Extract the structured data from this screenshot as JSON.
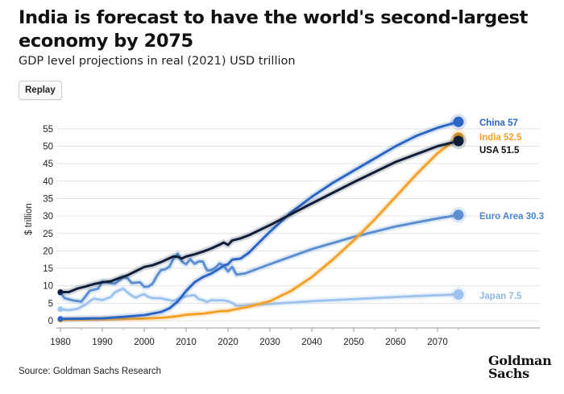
{
  "title": "India is forecast to have the world's second-largest economy by 2075",
  "subtitle": "GDP level projections in real (2021) USD trillion",
  "replay_label": "Replay",
  "source": "Source: Goldman Sachs Research",
  "logo": {
    "line1": "Goldman",
    "line2": "Sachs"
  },
  "chart_data": {
    "type": "line",
    "xlabel": "",
    "ylabel": "$ trillion",
    "xlim": [
      1980,
      2080
    ],
    "ylim": [
      -1,
      58
    ],
    "x_ticks": [
      1980,
      1990,
      2000,
      2010,
      2020,
      2030,
      2040,
      2050,
      2060,
      2070
    ],
    "y_ticks": [
      0,
      5,
      10,
      15,
      20,
      25,
      30,
      35,
      40,
      45,
      50,
      55
    ],
    "grid": "horizontal",
    "legend": "end-of-line labels, right",
    "series": [
      {
        "name": "USA",
        "end_label": "USA 51.5",
        "color": "#0f1f3a",
        "points": [
          [
            1980,
            8.2
          ],
          [
            1982,
            8.2
          ],
          [
            1984,
            9.2
          ],
          [
            1986,
            9.8
          ],
          [
            1988,
            10.5
          ],
          [
            1990,
            11.0
          ],
          [
            1992,
            11.3
          ],
          [
            1994,
            12.2
          ],
          [
            1996,
            13.0
          ],
          [
            1998,
            14.2
          ],
          [
            2000,
            15.4
          ],
          [
            2002,
            15.9
          ],
          [
            2004,
            16.8
          ],
          [
            2006,
            17.9
          ],
          [
            2007,
            18.4
          ],
          [
            2008,
            18.3
          ],
          [
            2009,
            17.8
          ],
          [
            2010,
            18.4
          ],
          [
            2012,
            19.0
          ],
          [
            2014,
            19.8
          ],
          [
            2016,
            20.7
          ],
          [
            2018,
            21.8
          ],
          [
            2019,
            22.4
          ],
          [
            2020,
            21.7
          ],
          [
            2021,
            23.0
          ],
          [
            2023,
            23.6
          ],
          [
            2025,
            24.5
          ],
          [
            2030,
            27.4
          ],
          [
            2040,
            33.6
          ],
          [
            2050,
            39.7
          ],
          [
            2060,
            45.5
          ],
          [
            2070,
            50.0
          ],
          [
            2075,
            51.5
          ]
        ]
      },
      {
        "name": "China",
        "end_label": "China 57",
        "color": "#2b66c4",
        "points": [
          [
            1980,
            0.5
          ],
          [
            1985,
            0.6
          ],
          [
            1990,
            0.7
          ],
          [
            1995,
            1.1
          ],
          [
            2000,
            1.6
          ],
          [
            2004,
            2.5
          ],
          [
            2006,
            3.5
          ],
          [
            2008,
            5.5
          ],
          [
            2010,
            8.5
          ],
          [
            2012,
            11.0
          ],
          [
            2014,
            12.5
          ],
          [
            2016,
            13.5
          ],
          [
            2018,
            15.0
          ],
          [
            2019,
            15.8
          ],
          [
            2020,
            16.2
          ],
          [
            2021,
            17.5
          ],
          [
            2023,
            17.8
          ],
          [
            2025,
            19.5
          ],
          [
            2030,
            25.5
          ],
          [
            2035,
            31.0
          ],
          [
            2040,
            35.5
          ],
          [
            2045,
            39.5
          ],
          [
            2050,
            43.0
          ],
          [
            2055,
            46.5
          ],
          [
            2060,
            50.0
          ],
          [
            2065,
            53.0
          ],
          [
            2070,
            55.3
          ],
          [
            2075,
            57.0
          ]
        ]
      },
      {
        "name": "India",
        "end_label": "India 52.5",
        "color": "#f2a12a",
        "points": [
          [
            1980,
            0.3
          ],
          [
            1990,
            0.4
          ],
          [
            2000,
            0.6
          ],
          [
            2005,
            0.9
          ],
          [
            2008,
            1.3
          ],
          [
            2010,
            1.7
          ],
          [
            2014,
            2.0
          ],
          [
            2018,
            2.7
          ],
          [
            2020,
            2.8
          ],
          [
            2021,
            3.1
          ],
          [
            2025,
            4.0
          ],
          [
            2030,
            5.6
          ],
          [
            2035,
            8.5
          ],
          [
            2040,
            12.5
          ],
          [
            2045,
            17.5
          ],
          [
            2050,
            23.0
          ],
          [
            2055,
            29.0
          ],
          [
            2060,
            35.5
          ],
          [
            2065,
            42.0
          ],
          [
            2070,
            48.0
          ],
          [
            2075,
            52.5
          ]
        ]
      },
      {
        "name": "Euro Area",
        "end_label": "Euro Area 30.3",
        "color": "#5b8fd0",
        "points": [
          [
            1980,
            8.0
          ],
          [
            1981,
            6.5
          ],
          [
            1983,
            5.8
          ],
          [
            1985,
            5.5
          ],
          [
            1986,
            7.0
          ],
          [
            1987,
            8.6
          ],
          [
            1989,
            9.2
          ],
          [
            1990,
            11.2
          ],
          [
            1991,
            11.0
          ],
          [
            1993,
            10.6
          ],
          [
            1995,
            12.4
          ],
          [
            1996,
            12.2
          ],
          [
            1997,
            10.8
          ],
          [
            1999,
            11.0
          ],
          [
            2000,
            9.7
          ],
          [
            2001,
            9.8
          ],
          [
            2002,
            10.6
          ],
          [
            2003,
            12.8
          ],
          [
            2004,
            14.5
          ],
          [
            2005,
            14.7
          ],
          [
            2006,
            15.5
          ],
          [
            2007,
            17.8
          ],
          [
            2008,
            19.2
          ],
          [
            2009,
            16.9
          ],
          [
            2010,
            16.2
          ],
          [
            2011,
            17.6
          ],
          [
            2012,
            16.3
          ],
          [
            2013,
            17.0
          ],
          [
            2014,
            16.9
          ],
          [
            2015,
            14.4
          ],
          [
            2016,
            14.5
          ],
          [
            2017,
            15.2
          ],
          [
            2018,
            16.4
          ],
          [
            2019,
            15.7
          ],
          [
            2020,
            14.1
          ],
          [
            2021,
            15.4
          ],
          [
            2022,
            13.2
          ],
          [
            2024,
            13.5
          ],
          [
            2030,
            16.2
          ],
          [
            2040,
            20.5
          ],
          [
            2050,
            24.0
          ],
          [
            2060,
            27.0
          ],
          [
            2070,
            29.3
          ],
          [
            2075,
            30.3
          ]
        ]
      },
      {
        "name": "Japan",
        "end_label": "Japan 7.5",
        "color": "#9ec3ee",
        "points": [
          [
            1980,
            3.3
          ],
          [
            1982,
            3.0
          ],
          [
            1984,
            3.4
          ],
          [
            1986,
            4.6
          ],
          [
            1987,
            5.6
          ],
          [
            1988,
            6.3
          ],
          [
            1990,
            5.9
          ],
          [
            1992,
            6.8
          ],
          [
            1993,
            8.1
          ],
          [
            1994,
            8.7
          ],
          [
            1995,
            9.2
          ],
          [
            1996,
            8.1
          ],
          [
            1997,
            7.2
          ],
          [
            1998,
            6.6
          ],
          [
            1999,
            7.2
          ],
          [
            2000,
            7.6
          ],
          [
            2001,
            6.8
          ],
          [
            2002,
            6.5
          ],
          [
            2004,
            6.4
          ],
          [
            2006,
            5.9
          ],
          [
            2007,
            5.7
          ],
          [
            2008,
            6.1
          ],
          [
            2009,
            6.6
          ],
          [
            2010,
            7.0
          ],
          [
            2011,
            7.2
          ],
          [
            2012,
            7.3
          ],
          [
            2013,
            6.2
          ],
          [
            2014,
            5.9
          ],
          [
            2015,
            5.4
          ],
          [
            2016,
            5.9
          ],
          [
            2017,
            5.8
          ],
          [
            2018,
            5.9
          ],
          [
            2019,
            5.8
          ],
          [
            2020,
            5.6
          ],
          [
            2021,
            5.1
          ],
          [
            2022,
            4.3
          ],
          [
            2023,
            4.3
          ],
          [
            2030,
            4.8
          ],
          [
            2040,
            5.6
          ],
          [
            2050,
            6.2
          ],
          [
            2060,
            6.8
          ],
          [
            2070,
            7.3
          ],
          [
            2075,
            7.5
          ]
        ]
      }
    ]
  }
}
